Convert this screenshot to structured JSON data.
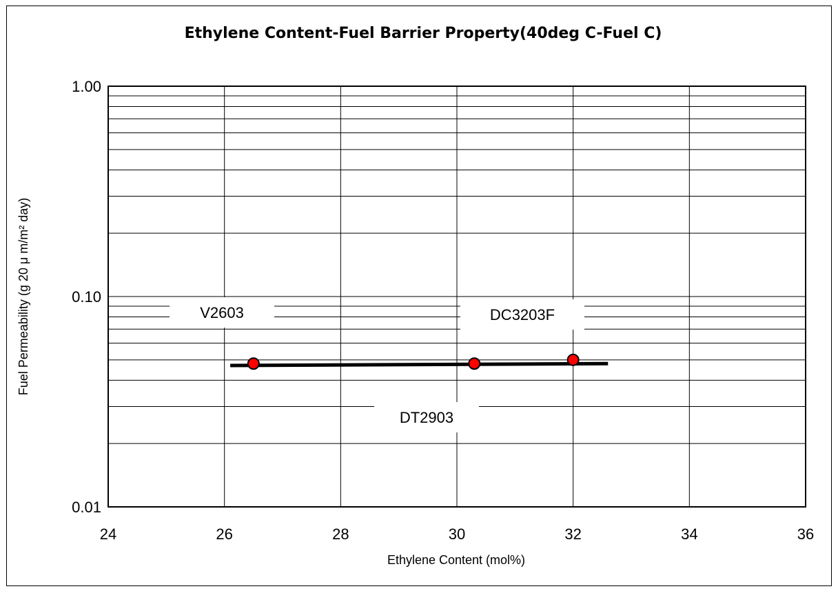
{
  "chart_data": {
    "type": "scatter",
    "title": "Ethylene Content-Fuel Barrier Property(40deg C-Fuel C)",
    "xlabel": "Ethylene Content (mol%)",
    "ylabel": "Fuel Permeability (g 20 μ m/m² day)",
    "xlim": [
      24,
      36
    ],
    "ylim": [
      0.01,
      1.0
    ],
    "yscale": "log",
    "x_ticks": [
      "24",
      "26",
      "28",
      "30",
      "32",
      "34",
      "36"
    ],
    "y_ticks": [
      "0.01",
      "0.10",
      "1.00"
    ],
    "grid": true,
    "points": [
      {
        "label": "V2603",
        "x": 26.5,
        "y": 0.048
      },
      {
        "label": "DT2903",
        "x": 30.3,
        "y": 0.048
      },
      {
        "label": "DC3203F",
        "x": 32.0,
        "y": 0.05
      }
    ],
    "trendline": {
      "x_start": 26.1,
      "x_end": 32.6,
      "y_start": 0.047,
      "y_end": 0.048
    },
    "marker_color": "#ff0000",
    "line_color": "#000000"
  }
}
